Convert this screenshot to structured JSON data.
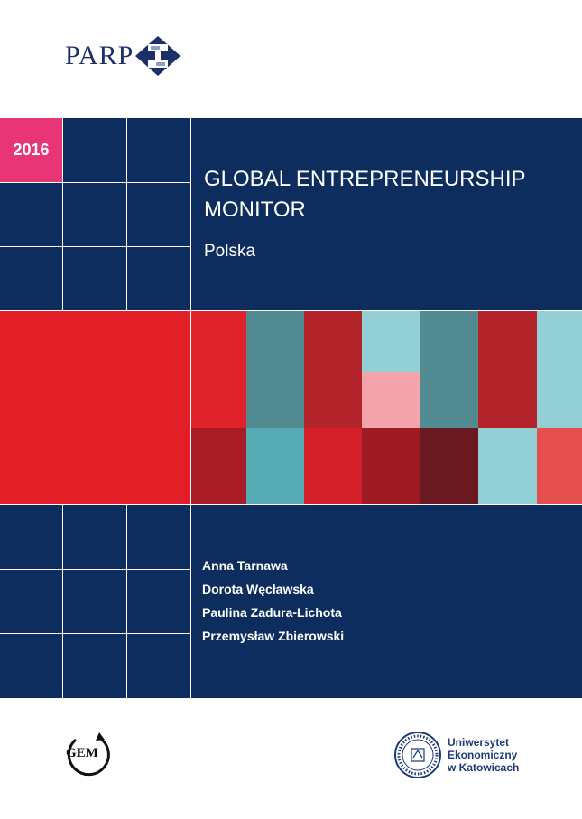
{
  "header": {
    "logo_text": "PARP"
  },
  "year": "2016",
  "title": "GLOBAL ENTREPRENEURSHIP MONITOR",
  "subtitle": "Polska",
  "authors": [
    "Anna Tarnawa",
    "Dorota Węcławska",
    "Paulina Zadura-Lichota",
    "Przemysław Zbierowski"
  ],
  "footer": {
    "gem_logo_text": "GEM",
    "university_lines": [
      "Uniwersytet",
      "Ekonomiczny",
      "w Katowicach"
    ]
  },
  "colors": {
    "navy": "#0c2d5e",
    "pink": "#e73575",
    "red": "#e21e26"
  }
}
